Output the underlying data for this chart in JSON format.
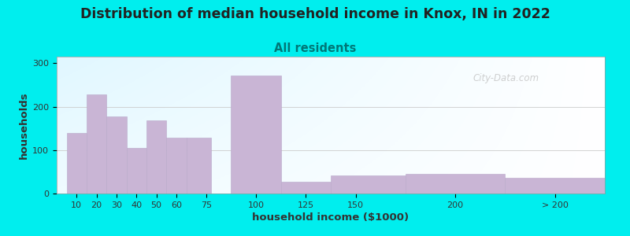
{
  "title": "Distribution of median household income in Knox, IN in 2022",
  "subtitle": "All residents",
  "xlabel": "household income ($1000)",
  "ylabel": "households",
  "bg_color": "#00EEEE",
  "plot_bg_top_left": "#dff2df",
  "plot_bg_bottom_right": "#f8f8ff",
  "bar_color": "#c9b5d5",
  "bar_edge_color": "#b8a8ca",
  "categories": [
    "10",
    "20",
    "30",
    "40",
    "50",
    "60",
    "75",
    "100",
    "125",
    "150",
    "200",
    "> 200"
  ],
  "values": [
    140,
    228,
    178,
    105,
    168,
    128,
    128,
    272,
    27,
    42,
    46,
    37
  ],
  "bar_lefts": [
    5,
    15,
    25,
    35,
    45,
    55,
    65,
    87.5,
    112.5,
    137.5,
    175,
    225
  ],
  "bar_widths": [
    10,
    10,
    10,
    10,
    10,
    10,
    12.5,
    25,
    25,
    37.5,
    50,
    50
  ],
  "xtick_pos": [
    10,
    20,
    30,
    40,
    50,
    60,
    75,
    100,
    125,
    150,
    200,
    250
  ],
  "xtick_labels": [
    "10",
    "20",
    "30",
    "40",
    "50",
    "60",
    "75",
    "100",
    "125",
    "150",
    "200",
    "> 200"
  ],
  "yticks": [
    0,
    100,
    200,
    300
  ],
  "ylim": [
    0,
    315
  ],
  "xlim": [
    0,
    275
  ],
  "watermark": "City-Data.com",
  "title_fontsize": 12.5,
  "subtitle_fontsize": 10.5,
  "subtitle_color": "#007777",
  "tick_fontsize": 8,
  "axis_label_fontsize": 9.5
}
